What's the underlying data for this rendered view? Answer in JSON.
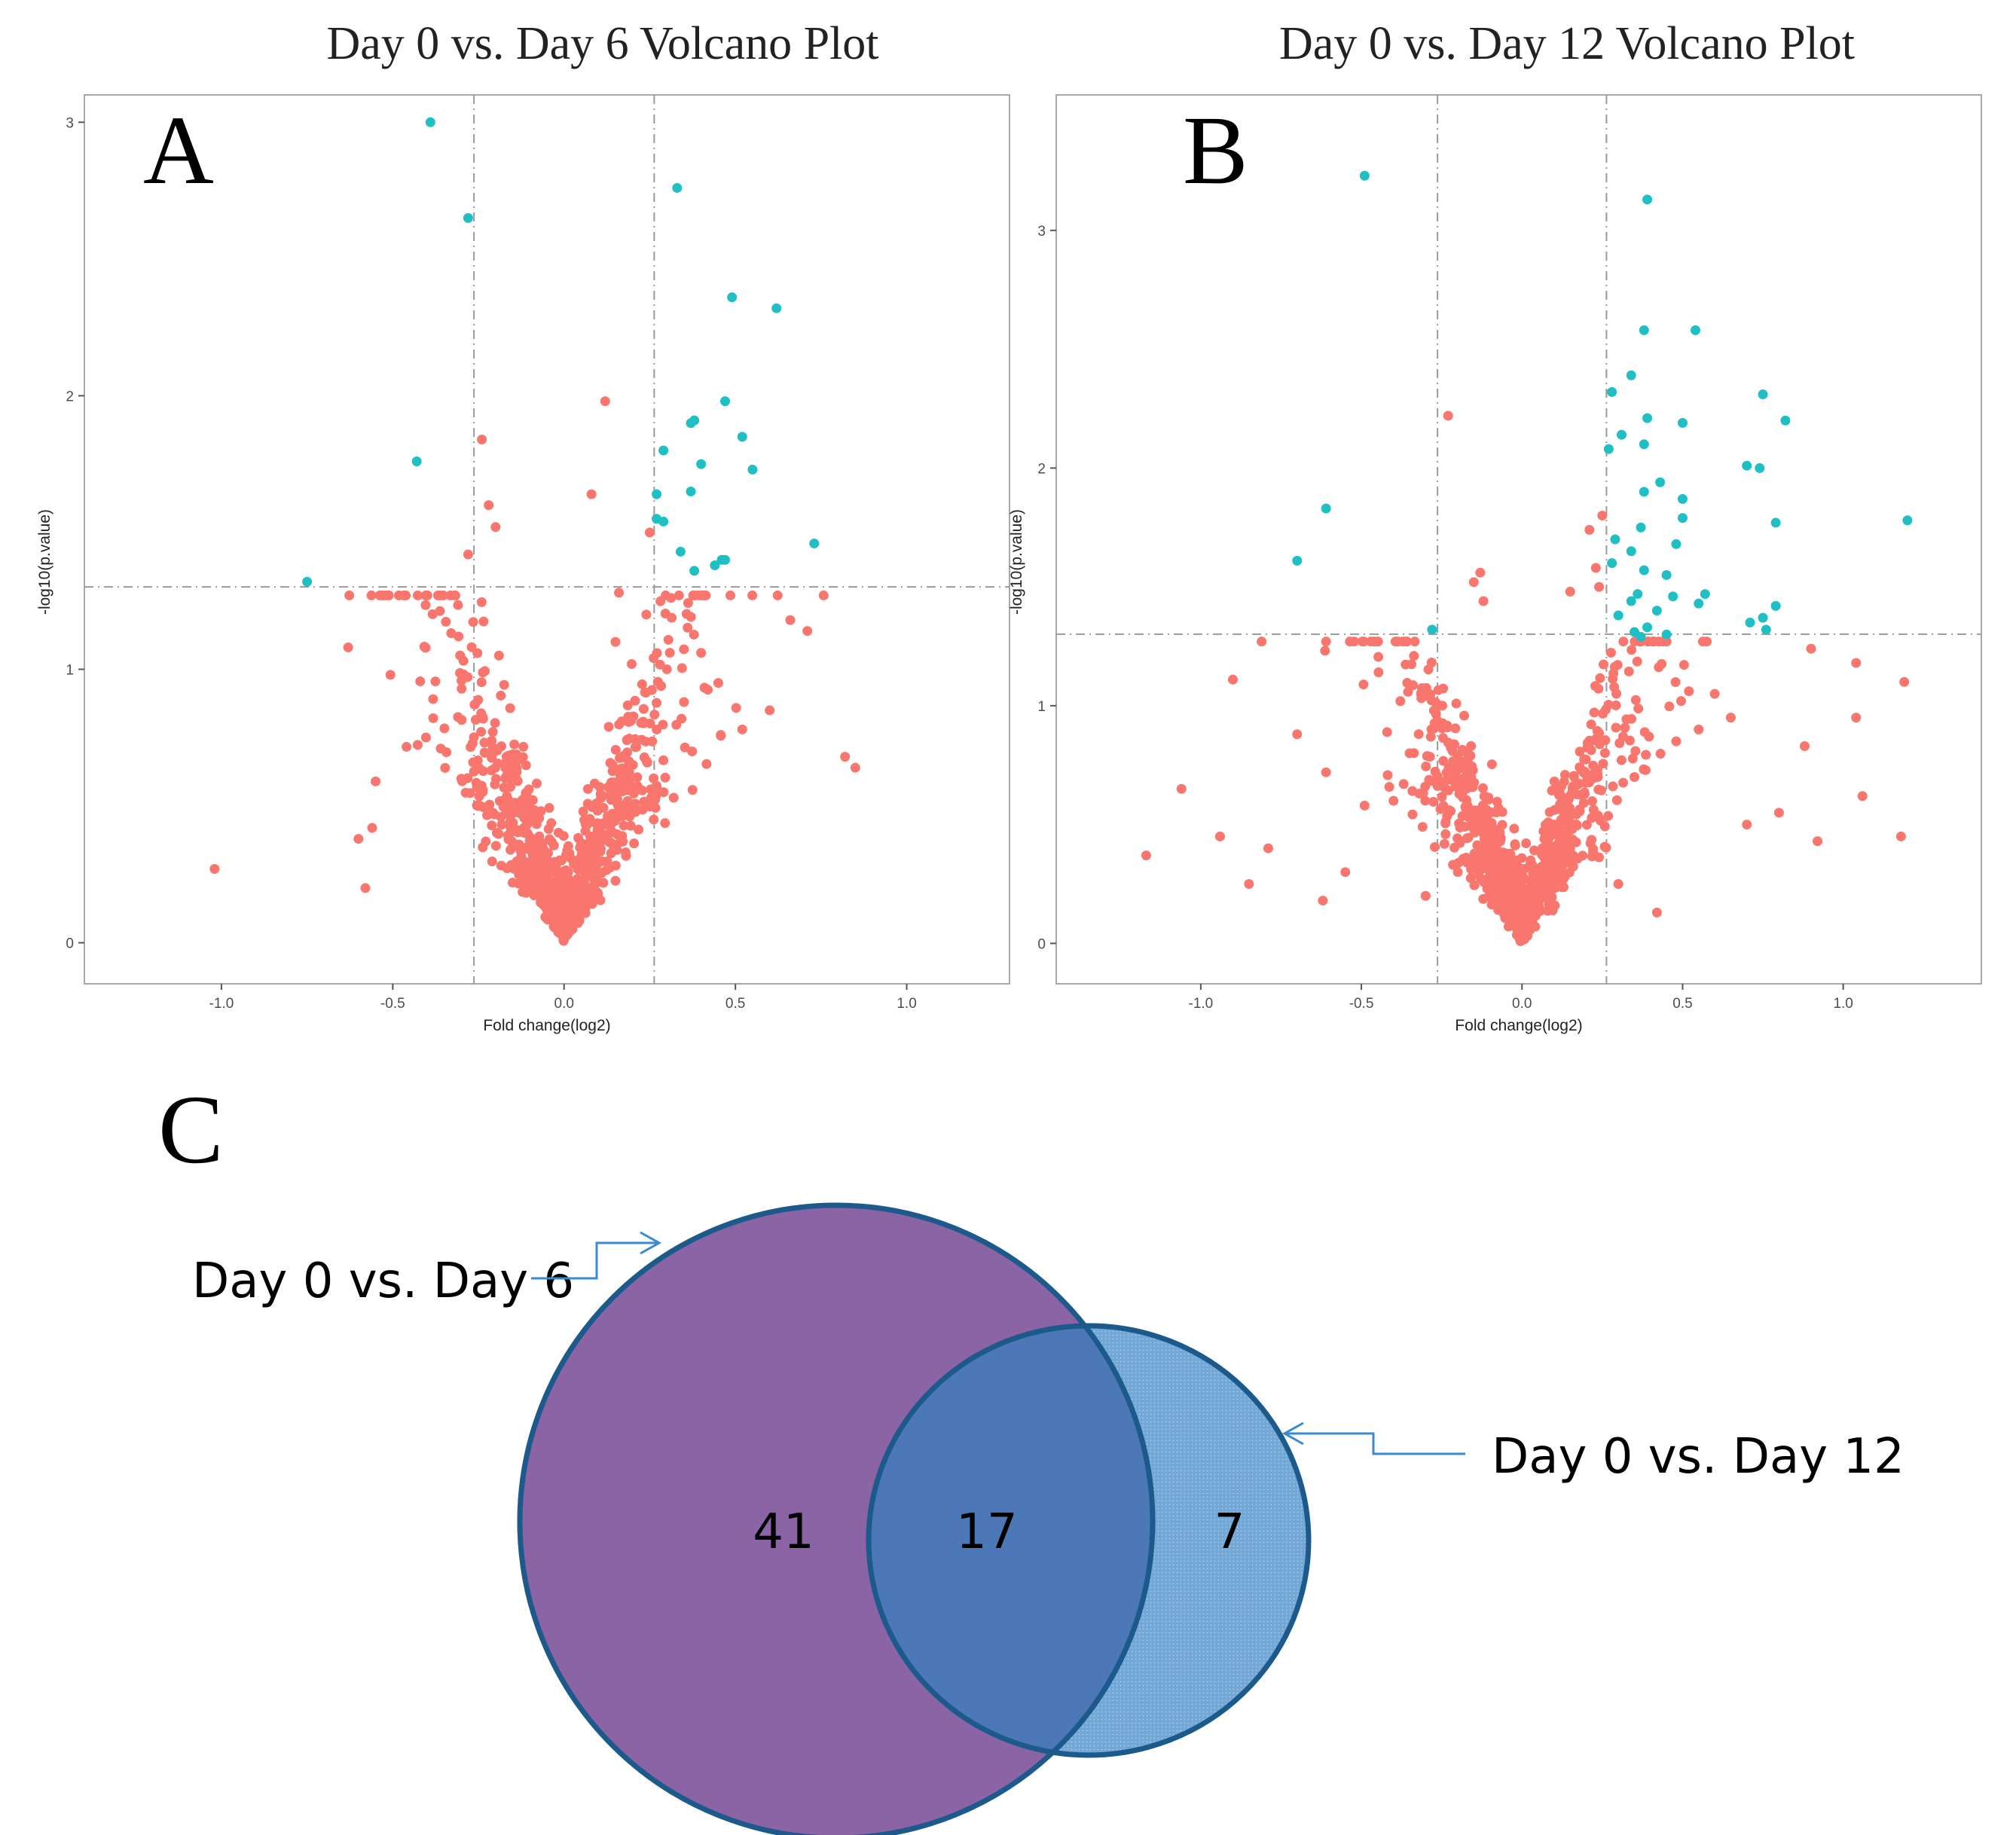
{
  "figure": {
    "panel_labels": [
      "A",
      "B",
      "C"
    ]
  },
  "chart_data": [
    {
      "type": "scatter",
      "panel": "A",
      "title": "Day 0 vs. Day 6 Volcano Plot",
      "xlabel": "Fold change(log2)",
      "ylabel": "-log10(p.value)",
      "xlim": [
        -1.4,
        1.3
      ],
      "ylim": [
        -0.15,
        3.1
      ],
      "x_ticks": [
        -1.0,
        -0.5,
        0.0,
        0.5,
        1.0
      ],
      "x_tick_labels": [
        "-1.0",
        "-0.5",
        "0.0",
        "0.5",
        "1.0"
      ],
      "y_ticks": [
        0,
        1,
        2,
        3
      ],
      "y_tick_labels": [
        "0",
        "1",
        "2",
        "3"
      ],
      "thresholds": {
        "x": [
          -0.263,
          0.263
        ],
        "y": 1.301
      },
      "grid": false,
      "colors": {
        "significant": "#1fbfc4",
        "not_significant": "#f8766d"
      },
      "series": [
        {
          "name": "significant",
          "x": [
            -0.39,
            -0.28,
            0.33,
            0.49,
            0.62,
            -0.43,
            0.47,
            0.37,
            0.38,
            0.52,
            0.29,
            0.4,
            0.55,
            0.27,
            0.37,
            0.27,
            0.29,
            0.34,
            0.73,
            0.44,
            0.46,
            0.47,
            0.38,
            -0.75
          ],
          "y": [
            3.0,
            2.65,
            2.76,
            2.36,
            2.32,
            1.76,
            1.98,
            1.9,
            1.91,
            1.85,
            1.8,
            1.75,
            1.73,
            1.64,
            1.65,
            1.55,
            1.54,
            1.43,
            1.46,
            1.38,
            1.4,
            1.4,
            1.36,
            1.32
          ]
        },
        {
          "name": "not_significant",
          "x": [
            0.12,
            -0.24,
            0.08,
            -0.22,
            -0.2,
            0.25,
            -0.28,
            0.16,
            0.24,
            0.15,
            -0.19,
            0.66,
            0.71,
            0.4,
            -0.63,
            -0.55,
            -0.56,
            -0.6,
            -0.58,
            -1.02,
            0.82,
            0.85,
            -0.36,
            0.6,
            0.45,
            0.52,
            0.35,
            0.3,
            0.27,
            -0.05,
            0.02,
            -0.12,
            -0.15,
            0.1,
            0.05,
            -0.3,
            -0.25
          ],
          "y": [
            1.98,
            1.84,
            1.64,
            1.6,
            1.52,
            1.5,
            1.42,
            1.28,
            1.2,
            1.1,
            1.05,
            1.18,
            1.14,
            1.06,
            1.08,
            0.59,
            0.42,
            0.38,
            0.2,
            0.27,
            0.68,
            0.64,
            0.71,
            0.85,
            0.95,
            0.78,
            0.88,
            1.0,
            0.55,
            0.12,
            0.08,
            0.3,
            0.22,
            0.4,
            0.35,
            0.6,
            0.5
          ]
        }
      ]
    },
    {
      "type": "scatter",
      "panel": "B",
      "title": "Day 0 vs. Day 12 Volcano Plot",
      "xlabel": "Fold change(log2)",
      "ylabel": "-log10(p.value)",
      "xlim": [
        -1.45,
        1.43
      ],
      "ylim": [
        -0.17,
        3.57
      ],
      "x_ticks": [
        -1.0,
        -0.5,
        0.0,
        0.5,
        1.0
      ],
      "x_tick_labels": [
        "-1.0",
        "-0.5",
        "0.0",
        "0.5",
        "1.0"
      ],
      "y_ticks": [
        0,
        1,
        2,
        3
      ],
      "y_tick_labels": [
        "0",
        "1",
        "2",
        "3"
      ],
      "thresholds": {
        "x": [
          -0.263,
          0.263
        ],
        "y": 1.301
      },
      "grid": false,
      "colors": {
        "significant": "#1fbfc4",
        "not_significant": "#f8766d"
      },
      "series": [
        {
          "name": "significant",
          "x": [
            -0.49,
            0.39,
            0.38,
            0.54,
            0.34,
            0.28,
            0.39,
            0.75,
            0.82,
            0.31,
            0.38,
            0.5,
            0.27,
            0.7,
            0.74,
            0.38,
            0.43,
            0.5,
            0.79,
            1.2,
            -0.61,
            0.37,
            0.5,
            0.29,
            0.34,
            0.48,
            -0.7,
            0.28,
            0.38,
            0.45,
            0.57,
            0.36,
            0.47,
            0.55,
            0.34,
            0.42,
            0.3,
            0.79,
            0.75,
            0.71,
            0.35,
            0.39,
            0.76,
            0.45,
            -0.28,
            0.37
          ],
          "y": [
            3.23,
            3.13,
            2.58,
            2.58,
            2.39,
            2.32,
            2.21,
            2.31,
            2.2,
            2.14,
            2.1,
            2.19,
            2.08,
            2.01,
            2.0,
            1.9,
            1.94,
            1.87,
            1.77,
            1.78,
            1.83,
            1.75,
            1.79,
            1.7,
            1.65,
            1.68,
            1.61,
            1.6,
            1.57,
            1.55,
            1.47,
            1.47,
            1.46,
            1.43,
            1.44,
            1.4,
            1.38,
            1.42,
            1.37,
            1.35,
            1.31,
            1.33,
            1.32,
            1.3,
            1.32,
            1.29
          ]
        },
        {
          "name": "not_significant",
          "x": [
            -0.23,
            0.25,
            0.21,
            0.23,
            0.24,
            0.15,
            -0.13,
            -0.15,
            -0.12,
            -0.9,
            -0.94,
            -0.7,
            -0.61,
            -1.06,
            -1.17,
            -0.79,
            -0.49,
            -0.62,
            0.9,
            1.04,
            1.19,
            1.06,
            1.04,
            1.18,
            0.92,
            0.88,
            0.6,
            0.65,
            0.7,
            0.42,
            0.3,
            -0.4,
            -0.35,
            -0.3,
            -0.2,
            0.1,
            0.05,
            -0.05,
            0.15,
            0.35,
            0.55,
            0.8,
            -0.85,
            -0.55,
            0.48
          ],
          "y": [
            2.22,
            1.8,
            1.74,
            1.58,
            1.5,
            1.48,
            1.56,
            1.52,
            1.44,
            1.11,
            0.45,
            0.88,
            0.72,
            0.65,
            0.37,
            0.4,
            0.58,
            0.18,
            1.24,
            1.18,
            1.1,
            0.62,
            0.95,
            0.45,
            0.43,
            0.83,
            1.05,
            0.95,
            0.5,
            0.13,
            0.25,
            0.6,
            0.8,
            0.2,
            0.3,
            0.5,
            0.2,
            0.15,
            0.4,
            0.7,
            0.9,
            0.55,
            0.25,
            0.3,
            0.85
          ]
        }
      ]
    },
    {
      "type": "venn",
      "panel": "C",
      "sets": [
        {
          "label": "Day 0 vs. Day 6",
          "only": 41,
          "color": "#8a64a4"
        },
        {
          "label": "Day 0 vs. Day 12",
          "only": 7,
          "color": "#72a7d6"
        }
      ],
      "intersection": 17,
      "intersection_color": "#4c78b8",
      "outline_color": "#1c5a8c",
      "arrow_color": "#3a8ad0"
    }
  ]
}
